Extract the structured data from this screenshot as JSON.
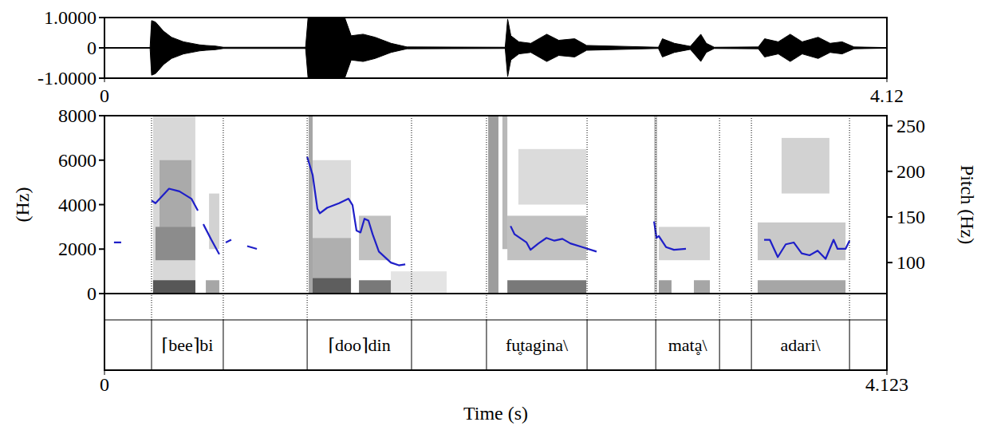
{
  "chart_data": [
    {
      "type": "waveform",
      "color": "#000000",
      "xlim": [
        0,
        4.12
      ],
      "xticks": [
        0,
        4.12
      ],
      "ylim": [
        -1,
        1
      ],
      "yticks": [
        {
          "value": 1,
          "label": "1.0000"
        },
        0,
        {
          "value": -1,
          "label": "-1.0000"
        }
      ],
      "x": [
        0,
        0.24,
        0.248,
        0.269,
        0.311,
        0.353,
        0.416,
        0.5,
        0.534,
        0.584,
        0.626,
        1.059,
        1.072,
        1.265,
        1.299,
        1.362,
        1.425,
        1.509,
        1.593,
        2.11,
        2.123,
        2.14,
        2.182,
        2.245,
        2.329,
        2.392,
        2.476,
        2.539,
        2.917,
        2.938,
        3.001,
        3.085,
        3.14,
        3.169,
        3.211,
        3.443,
        3.476,
        3.548,
        3.611,
        3.674,
        3.758,
        3.821,
        3.884,
        3.947,
        4.12
      ],
      "values": [
        0.01,
        0.01,
        0.9,
        0.85,
        0.55,
        0.35,
        0.2,
        0.1,
        0.08,
        0.06,
        0.02,
        0.02,
        1.0,
        1.0,
        0.4,
        0.45,
        0.35,
        0.15,
        0.03,
        0.02,
        0.95,
        0.4,
        0.2,
        0.15,
        0.45,
        0.25,
        0.3,
        0.08,
        0.02,
        0.3,
        0.15,
        0.05,
        0.45,
        0.15,
        0.02,
        0.03,
        0.3,
        0.2,
        0.45,
        0.2,
        0.35,
        0.15,
        0.2,
        0.03,
        0.01
      ]
    },
    {
      "type": "spectrogram",
      "x_label": "Time (s)",
      "y_label": "(Hz)",
      "y2_label": "Pitch (Hz)",
      "xlim": [
        0,
        4.123
      ],
      "xticks": [
        0,
        4.123
      ],
      "ylim": [
        0,
        8000
      ],
      "yticks": [
        0,
        2000,
        4000,
        6000,
        8000
      ],
      "y2lim": [
        66,
        261
      ],
      "y2ticks": [
        100,
        150,
        200,
        250
      ],
      "spectrogram": [
        {
          "t0": 0.256,
          "t1": 0.479,
          "f0": 0,
          "f1": 8000,
          "level": 0.22
        },
        {
          "t0": 0.256,
          "t1": 0.479,
          "f0": 0,
          "f1": 600,
          "level": 0.85
        },
        {
          "t0": 0.269,
          "t1": 0.479,
          "f0": 1500,
          "f1": 3000,
          "level": 0.5
        },
        {
          "t0": 0.29,
          "t1": 0.458,
          "f0": 3000,
          "f1": 6000,
          "level": 0.3
        },
        {
          "t0": 0.534,
          "t1": 0.605,
          "f0": 0,
          "f1": 600,
          "level": 0.5
        },
        {
          "t0": 0.551,
          "t1": 0.605,
          "f0": 2000,
          "f1": 4500,
          "level": 0.25
        },
        {
          "t0": 1.076,
          "t1": 1.097,
          "f0": 0,
          "f1": 8000,
          "level": 0.5
        },
        {
          "t0": 1.097,
          "t1": 1.299,
          "f0": 0,
          "f1": 700,
          "level": 0.9
        },
        {
          "t0": 1.097,
          "t1": 1.299,
          "f0": 700,
          "f1": 2500,
          "level": 0.45
        },
        {
          "t0": 1.097,
          "t1": 1.299,
          "f0": 2500,
          "f1": 6000,
          "level": 0.2
        },
        {
          "t0": 1.341,
          "t1": 1.509,
          "f0": 0,
          "f1": 600,
          "level": 0.75
        },
        {
          "t0": 1.341,
          "t1": 1.509,
          "f0": 1500,
          "f1": 3500,
          "level": 0.35
        },
        {
          "t0": 1.509,
          "t1": 1.803,
          "f0": 0,
          "f1": 1000,
          "level": 0.15
        },
        {
          "t0": 2.022,
          "t1": 2.076,
          "f0": 0,
          "f1": 8000,
          "level": 0.55
        },
        {
          "t0": 2.097,
          "t1": 2.123,
          "f0": 2000,
          "f1": 8000,
          "level": 0.4
        },
        {
          "t0": 2.123,
          "t1": 2.539,
          "f0": 0,
          "f1": 600,
          "level": 0.75
        },
        {
          "t0": 2.123,
          "t1": 2.539,
          "f0": 1500,
          "f1": 3500,
          "level": 0.35
        },
        {
          "t0": 2.181,
          "t1": 2.539,
          "f0": 4000,
          "f1": 6500,
          "level": 0.2
        },
        {
          "t0": 2.896,
          "t1": 2.913,
          "f0": 0,
          "f1": 8000,
          "level": 0.3
        },
        {
          "t0": 2.921,
          "t1": 2.988,
          "f0": 0,
          "f1": 600,
          "level": 0.55
        },
        {
          "t0": 3.106,
          "t1": 3.19,
          "f0": 0,
          "f1": 600,
          "level": 0.5
        },
        {
          "t0": 2.921,
          "t1": 3.19,
          "f0": 1500,
          "f1": 3000,
          "level": 0.25
        },
        {
          "t0": 3.442,
          "t1": 3.905,
          "f0": 0,
          "f1": 600,
          "level": 0.5
        },
        {
          "t0": 3.442,
          "t1": 3.905,
          "f0": 1500,
          "f1": 3200,
          "level": 0.3
        },
        {
          "t0": 3.568,
          "t1": 3.82,
          "f0": 4500,
          "f1": 7000,
          "level": 0.25
        }
      ],
      "series": [
        {
          "axis": "y2",
          "type": "line",
          "color": "#1f1fc8",
          "x": [
            0.05,
            0.088,
            0.17,
            0.248,
            0.269,
            0.34,
            0.395,
            0.458,
            0.492,
            0.507,
            0.521,
            0.563,
            0.605,
            0.62,
            0.639,
            0.668,
            0.71,
            0.752,
            0.803,
            0.9,
            1.068,
            1.097,
            1.122,
            1.135,
            1.173,
            1.236,
            1.286,
            1.307,
            1.328,
            1.349,
            1.37,
            1.391,
            1.413,
            1.446,
            1.509,
            1.551,
            1.585,
            1.9,
            2.14,
            2.161,
            2.224,
            2.245,
            2.287,
            2.329,
            2.371,
            2.413,
            2.455,
            2.518,
            2.593,
            2.75,
            2.896,
            2.909,
            2.921,
            2.959,
            3.001,
            3.064,
            3.3,
            3.476,
            3.506,
            3.548,
            3.59,
            3.632,
            3.674,
            3.716,
            3.758,
            3.8,
            3.842,
            3.863,
            3.905,
            3.926
          ],
          "values": [
            122,
            122,
            null,
            168,
            165,
            181,
            178,
            170,
            157,
            null,
            142,
            125,
            109,
            null,
            122,
            125,
            null,
            118,
            115,
            null,
            216,
            196,
            159,
            154,
            160,
            165,
            170,
            163,
            135,
            133,
            148,
            146,
            131,
            112,
            100,
            97,
            98,
            null,
            140,
            131,
            122,
            114,
            121,
            127,
            124,
            126,
            121,
            117,
            112,
            null,
            145,
            127,
            129,
            117,
            114,
            115,
            null,
            125,
            125,
            106,
            120,
            122,
            110,
            108,
            113,
            104,
            125,
            115,
            115,
            124
          ]
        }
      ],
      "intervals": [
        {
          "start": 0.248,
          "end": 0.626,
          "label": "⌈bee⌉bi"
        },
        {
          "start": 1.068,
          "end": 1.618,
          "label": "⌈doo⌉din"
        },
        {
          "start": 2.013,
          "end": 2.543,
          "label": "fu̥tagina\\"
        },
        {
          "start": 2.905,
          "end": 3.241,
          "label": "matḁ\\"
        },
        {
          "start": 3.409,
          "end": 3.926,
          "label": "adari\\"
        }
      ]
    }
  ]
}
